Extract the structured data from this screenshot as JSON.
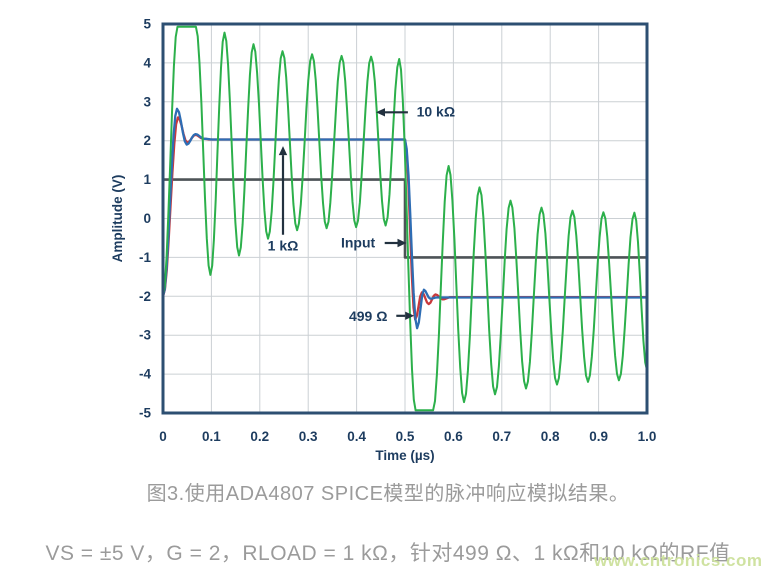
{
  "captions": {
    "caption": "图3.使用ADA4807 SPICE模型的脉冲响应模拟结果。",
    "conditions": "VS = ±5 V，G = 2，RLOAD = 1 kΩ，针对499 Ω、1 kΩ和10 kΩ的RF值",
    "watermark": "www.cntronics.com"
  },
  "colors": {
    "frame": "#2d4f72",
    "grid": "#cbd0d4",
    "tick_text": "#1d3c5f",
    "annotation_text": "#1d3c5f",
    "arrow": "#22313f",
    "caption_gray": "#9b9b9b",
    "watermark_green": "#cde19c",
    "background": "#ffffff"
  },
  "chart_data": {
    "type": "line",
    "title": "",
    "xlabel": "Time (µs)",
    "ylabel": "Amplitude (V)",
    "xlim": [
      0,
      1
    ],
    "ylim": [
      -5,
      5
    ],
    "grid": true,
    "legend": "none (inline arrow annotations)",
    "x_ticks": [
      "0",
      "0.1",
      "0.2",
      "0.3",
      "0.4",
      "0.5",
      "0.6",
      "0.7",
      "0.8",
      "0.9",
      "1.0"
    ],
    "y_ticks": [
      "5",
      "4",
      "3",
      "2",
      "1",
      "0",
      "-1",
      "-2",
      "-3",
      "-4",
      "-5"
    ],
    "series": [
      {
        "id": "input",
        "name": "Input",
        "color": "#4d5357",
        "width": 2.6,
        "interp": "linear",
        "points": [
          [
            0,
            1
          ],
          [
            0.5,
            1
          ],
          [
            0.5,
            -1
          ],
          [
            1,
            -1
          ]
        ]
      },
      {
        "id": "rf-499",
        "name": "499 Ω",
        "color": "#c8393c",
        "width": 2.3,
        "interp": "cosine",
        "points": [
          [
            0.0,
            -2.0
          ],
          [
            0.031,
            2.6
          ],
          [
            0.05,
            1.95
          ],
          [
            0.067,
            2.15
          ],
          [
            0.083,
            2.05
          ],
          [
            0.1,
            2.03
          ],
          [
            0.5,
            2.03
          ],
          [
            0.521,
            -2.6
          ],
          [
            0.535,
            -1.9
          ],
          [
            0.549,
            -2.2
          ],
          [
            0.563,
            -1.95
          ],
          [
            0.578,
            -2.08
          ],
          [
            0.595,
            -2.02
          ],
          [
            1.0,
            -2.02
          ]
        ]
      },
      {
        "id": "rf-1k",
        "name": "1 kΩ",
        "color": "#2e6db4",
        "width": 2.3,
        "interp": "cosine",
        "points": [
          [
            0.0,
            -2.0
          ],
          [
            0.029,
            2.82
          ],
          [
            0.049,
            1.9
          ],
          [
            0.067,
            2.17
          ],
          [
            0.085,
            2.05
          ],
          [
            0.105,
            2.03
          ],
          [
            0.5,
            2.03
          ],
          [
            0.525,
            -2.82
          ],
          [
            0.539,
            -1.83
          ],
          [
            0.552,
            -2.06
          ],
          [
            0.566,
            -2.03
          ],
          [
            1.0,
            -2.03
          ]
        ]
      },
      {
        "id": "rf-10k",
        "name": "10 kΩ",
        "color": "#2cb04b",
        "width": 2.0,
        "interp": "cosine",
        "points": [
          [
            0.0,
            -2.0
          ],
          [
            0.03,
            4.93
          ],
          [
            0.068,
            4.93
          ],
          [
            0.098,
            -1.45
          ],
          [
            0.127,
            4.78
          ],
          [
            0.157,
            -0.95
          ],
          [
            0.187,
            4.48
          ],
          [
            0.217,
            -0.52
          ],
          [
            0.247,
            4.3
          ],
          [
            0.277,
            -0.3
          ],
          [
            0.308,
            4.22
          ],
          [
            0.338,
            -0.25
          ],
          [
            0.369,
            4.18
          ],
          [
            0.399,
            -0.22
          ],
          [
            0.43,
            4.16
          ],
          [
            0.46,
            -0.18
          ],
          [
            0.488,
            4.1
          ],
          [
            0.522,
            -4.93
          ],
          [
            0.558,
            -4.93
          ],
          [
            0.59,
            1.35
          ],
          [
            0.622,
            -4.72
          ],
          [
            0.654,
            0.8
          ],
          [
            0.686,
            -4.52
          ],
          [
            0.718,
            0.46
          ],
          [
            0.75,
            -4.37
          ],
          [
            0.782,
            0.28
          ],
          [
            0.814,
            -4.27
          ],
          [
            0.846,
            0.2
          ],
          [
            0.878,
            -4.2
          ],
          [
            0.91,
            0.16
          ],
          [
            0.942,
            -4.16
          ],
          [
            0.974,
            0.15
          ],
          [
            1.0,
            -3.9
          ]
        ]
      }
    ],
    "annotations": [
      {
        "id": "rf-10k",
        "text": "10 kΩ",
        "text_at": [
          0.524,
          2.62
        ],
        "anchor": "start",
        "arrow_from": [
          0.506,
          2.73
        ],
        "arrow_to": [
          0.44,
          2.73
        ]
      },
      {
        "id": "rf-1k",
        "text": "1 kΩ",
        "text_at": [
          0.248,
          -0.82
        ],
        "anchor": "middle",
        "arrow_from": [
          0.248,
          -0.42
        ],
        "arrow_to": [
          0.248,
          1.86
        ]
      },
      {
        "id": "input",
        "text": "Input",
        "text_at": [
          0.403,
          -0.75
        ],
        "anchor": "middle",
        "arrow_from": [
          0.458,
          -0.63
        ],
        "arrow_to": [
          0.503,
          -0.63
        ]
      },
      {
        "id": "rf-499",
        "text": "499 Ω",
        "text_at": [
          0.424,
          -2.63
        ],
        "anchor": "middle",
        "arrow_from": [
          0.482,
          -2.5
        ],
        "arrow_to": [
          0.519,
          -2.5
        ]
      }
    ]
  }
}
